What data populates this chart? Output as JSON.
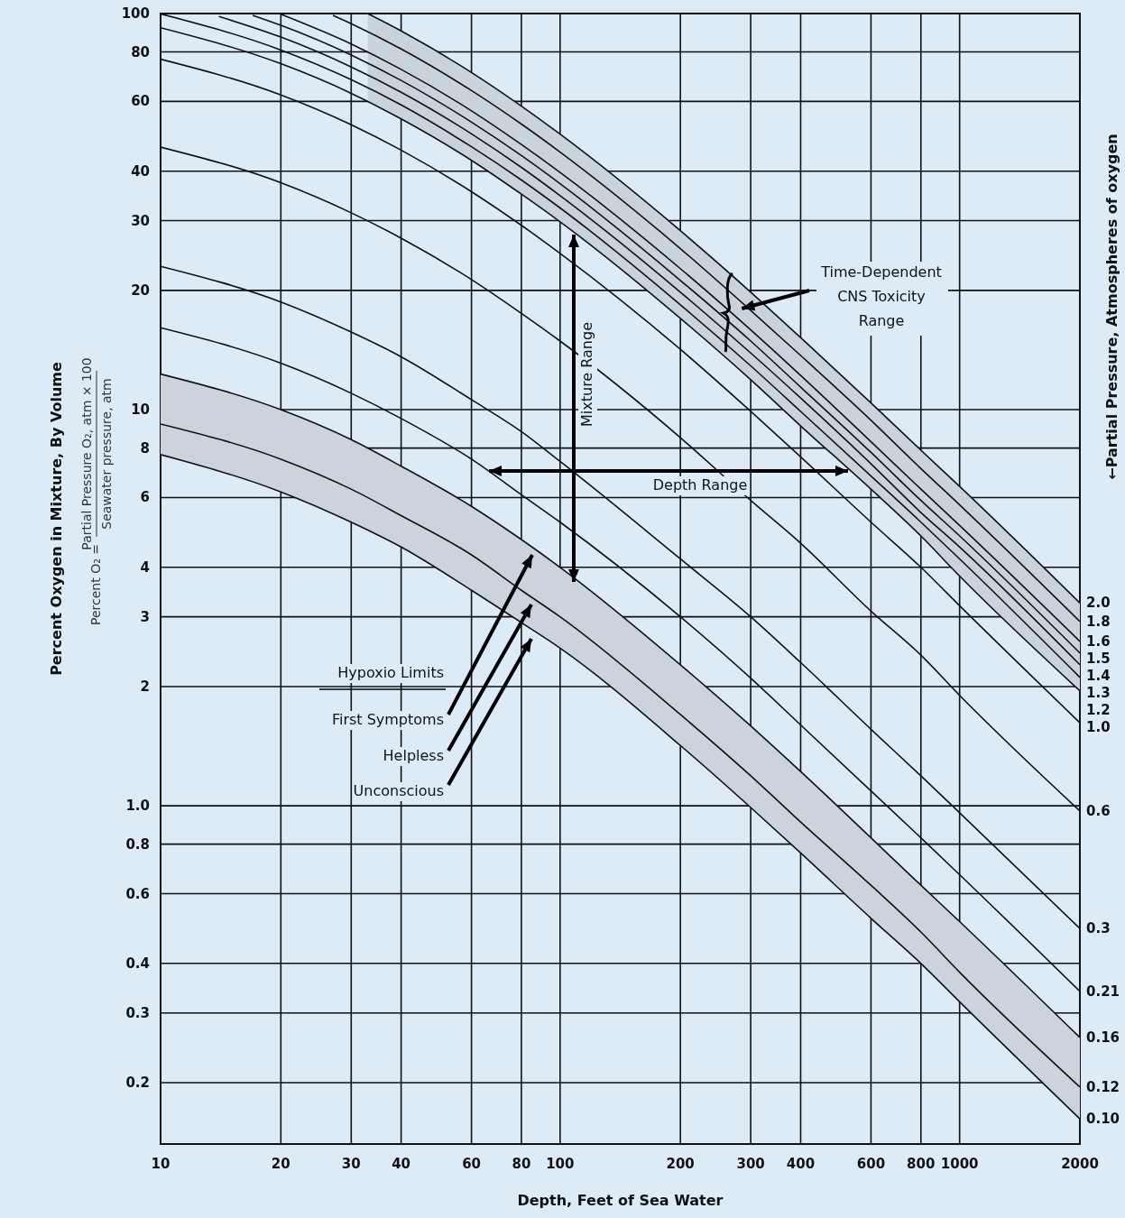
{
  "chart_data": {
    "type": "line",
    "xlabel": "Depth, Feet of Sea Water",
    "ylabel": "Percent Oxygen in Mixture, By Volume",
    "y2label": "←Partial Pressure, Atmospheres of oxygen",
    "log": "xy",
    "grid": true,
    "xlim": [
      10,
      2000
    ],
    "ylim": [
      0.14,
      100
    ],
    "xticks": [
      10,
      20,
      30,
      40,
      60,
      80,
      100,
      200,
      300,
      400,
      600,
      800,
      1000,
      2000
    ],
    "yticks": [
      100,
      80,
      60,
      40,
      30,
      20,
      10,
      8,
      6,
      4,
      3,
      2,
      {
        "value": 1,
        "label": "1.0"
      },
      0.8,
      0.6,
      0.4,
      0.3,
      0.2
    ],
    "x": [
      10,
      20,
      30,
      40,
      60,
      80,
      100,
      200,
      300,
      400,
      600,
      800,
      1000,
      2000
    ],
    "series": [
      {
        "name": "2.0",
        "color": "#111111",
        "x": [
          33,
          40,
          60,
          80,
          100,
          200,
          300,
          400,
          600,
          800,
          1000,
          2000
        ],
        "values": [
          100,
          90.4,
          71,
          58.4,
          49.6,
          28.3,
          19.8,
          15.2,
          10.4,
          7.9,
          6.4,
          3.25
        ],
        "lower": [
          60,
          54.2,
          42.6,
          35,
          29.8,
          17,
          11.9,
          9.1,
          6.3,
          4.8,
          3.8,
          1.95
        ],
        "upper": [
          100,
          90.4,
          71,
          58.4,
          49.6,
          28.3,
          19.8,
          15.2,
          10.4,
          7.9,
          6.4,
          3.25
        ]
      },
      {
        "name": "1.8",
        "color": "#111111",
        "x": [
          27,
          30,
          40,
          60,
          80,
          100,
          200,
          300,
          400,
          600,
          800,
          1000,
          2000
        ],
        "values": [
          99,
          94.3,
          81.4,
          63.9,
          52.6,
          44.7,
          25.5,
          17.8,
          13.7,
          9.4,
          7.1,
          5.75,
          2.92
        ]
      },
      {
        "name": "1.6",
        "color": "#111111",
        "x": [
          20,
          30,
          40,
          60,
          80,
          100,
          200,
          300,
          400,
          600,
          800,
          1000,
          2000
        ],
        "values": [
          99.6,
          83.8,
          72.3,
          56.8,
          46.7,
          39.7,
          22.7,
          15.9,
          12.2,
          8.3,
          6.3,
          5.1,
          2.6
        ]
      },
      {
        "name": "1.5",
        "color": "#111111",
        "x": [
          17,
          20,
          30,
          40,
          60,
          80,
          100,
          200,
          300,
          400,
          600,
          800,
          1000,
          2000
        ],
        "values": [
          99,
          93.4,
          78.6,
          67.8,
          53.2,
          43.8,
          37.2,
          21.2,
          14.9,
          11.4,
          7.8,
          5.9,
          4.8,
          2.43
        ]
      },
      {
        "name": "1.4",
        "color": "#111111",
        "x": [
          14,
          20,
          30,
          40,
          60,
          80,
          100,
          200,
          300,
          400,
          600,
          800,
          1000,
          2000
        ],
        "values": [
          98.3,
          87.2,
          73.3,
          63.3,
          49.7,
          40.9,
          34.7,
          19.8,
          13.9,
          10.7,
          7.3,
          5.5,
          4.5,
          2.27
        ]
      },
      {
        "name": "1.3",
        "color": "#111111",
        "values": [
          99.8,
          80.9,
          68.1,
          58.8,
          46.1,
          38,
          32.3,
          18.4,
          12.9,
          9.9,
          6.8,
          5.2,
          4.2,
          2.11
        ]
      },
      {
        "name": "1.2",
        "color": "#111111",
        "values": [
          92.1,
          74.7,
          62.9,
          54.2,
          42.6,
          35,
          29.8,
          17,
          11.9,
          9.1,
          6.3,
          4.8,
          3.8,
          1.95
        ]
      },
      {
        "name": "1.0",
        "color": "#111111",
        "values": [
          76.7,
          62.3,
          52.4,
          45.2,
          35.5,
          29.2,
          24.8,
          14.2,
          9.9,
          7.6,
          5.2,
          4.0,
          3.2,
          1.62
        ]
      },
      {
        "name": "0.6",
        "color": "#111111",
        "values": [
          46,
          37.4,
          31.4,
          27.1,
          21.3,
          17.5,
          14.9,
          8.5,
          5.9,
          4.6,
          3.1,
          2.4,
          1.9,
          0.97
        ]
      },
      {
        "name": "0.3",
        "color": "#111111",
        "values": [
          23,
          18.7,
          15.7,
          13.6,
          10.6,
          8.8,
          7.4,
          4.2,
          3.0,
          2.3,
          1.56,
          1.19,
          0.96,
          0.49
        ]
      },
      {
        "name": "0.21",
        "color": "#111111",
        "values": [
          16.1,
          13.1,
          11,
          9.5,
          7.5,
          6.1,
          5.2,
          3.0,
          2.1,
          1.6,
          1.09,
          0.83,
          0.67,
          0.34
        ]
      },
      {
        "name": "0.16",
        "color": "#111111",
        "values": [
          12.3,
          10,
          8.4,
          7.2,
          5.7,
          4.7,
          4.0,
          2.27,
          1.59,
          1.22,
          0.83,
          0.63,
          0.51,
          0.26
        ],
        "lower": [
          7.7,
          6.2,
          5.2,
          4.5,
          3.5,
          2.9,
          2.5,
          1.42,
          0.99,
          0.76,
          0.52,
          0.4,
          0.32,
          0.162
        ],
        "upper": [
          12.3,
          10,
          8.4,
          7.2,
          5.7,
          4.7,
          4.0,
          2.27,
          1.59,
          1.22,
          0.83,
          0.63,
          0.51,
          0.26
        ]
      },
      {
        "name": "0.12",
        "color": "#111111",
        "values": [
          9.2,
          7.5,
          6.3,
          5.4,
          4.3,
          3.5,
          3.0,
          1.7,
          1.19,
          0.91,
          0.63,
          0.48,
          0.38,
          0.195
        ]
      },
      {
        "name": "0.10",
        "color": "#111111",
        "values": [
          7.7,
          6.2,
          5.2,
          4.5,
          3.5,
          2.9,
          2.5,
          1.42,
          0.99,
          0.76,
          0.52,
          0.4,
          0.32,
          0.162
        ]
      }
    ],
    "annotations": [
      {
        "text": "Time-Dependent\nCNS Toxicity\nRange",
        "x": 285,
        "y": 18
      },
      "Mixture Range",
      "Depth Range",
      "Hypoxio Limits",
      "First Symptoms",
      "Helpless",
      "Unconscious",
      "Percent O₂ =",
      "Partial Pressure O₂, atm × 100",
      "Seawater pressure, atm"
    ]
  }
}
